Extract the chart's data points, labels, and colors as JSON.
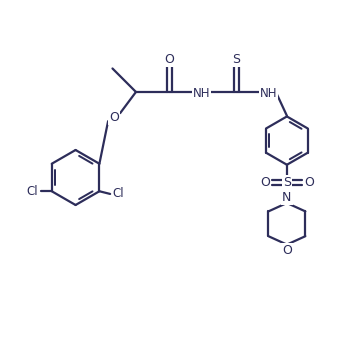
{
  "bg": "#ffffff",
  "lc": "#2d2d5a",
  "lw": 1.6,
  "figsize": [
    3.39,
    3.55
  ],
  "dpi": 100,
  "xlim": [
    0,
    10
  ],
  "ylim": [
    0,
    10.5
  ]
}
